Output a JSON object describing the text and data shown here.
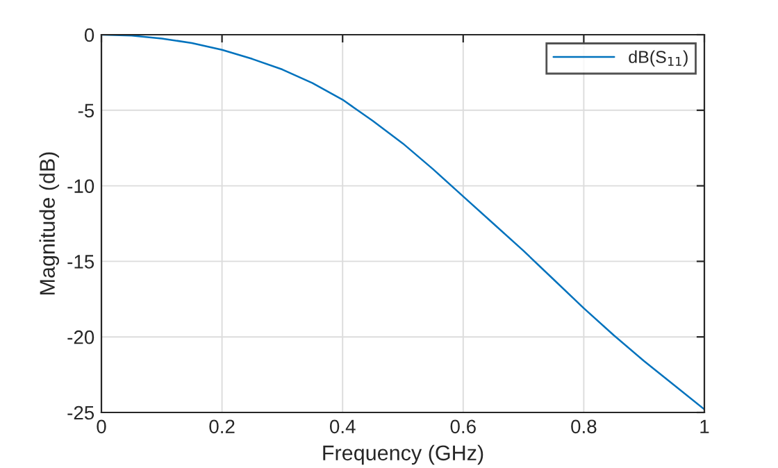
{
  "chart_data": {
    "type": "line",
    "xlabel": "Frequency (GHz)",
    "ylabel": "Magnitude (dB)",
    "x": [
      0,
      0.05,
      0.1,
      0.15,
      0.2,
      0.25,
      0.3,
      0.35,
      0.4,
      0.45,
      0.5,
      0.55,
      0.6,
      0.65,
      0.7,
      0.75,
      0.8,
      0.85,
      0.9,
      0.95,
      1.0
    ],
    "series": [
      {
        "name": "dB(S$_{11}$)",
        "color": "#0072bd",
        "values": [
          0,
          -0.06,
          -0.25,
          -0.55,
          -1.0,
          -1.6,
          -2.3,
          -3.2,
          -4.3,
          -5.7,
          -7.2,
          -8.9,
          -10.7,
          -12.5,
          -14.3,
          -16.2,
          -18.1,
          -19.9,
          -21.6,
          -23.2,
          -24.8
        ]
      }
    ],
    "xlim": [
      0,
      1
    ],
    "ylim": [
      -25,
      0
    ],
    "xticks": [
      0,
      0.2,
      0.4,
      0.6,
      0.8,
      1
    ],
    "yticks": [
      -25,
      -20,
      -15,
      -10,
      -5,
      0
    ],
    "grid": true,
    "legend": "top right",
    "marker": "none",
    "line_style": "solid"
  }
}
